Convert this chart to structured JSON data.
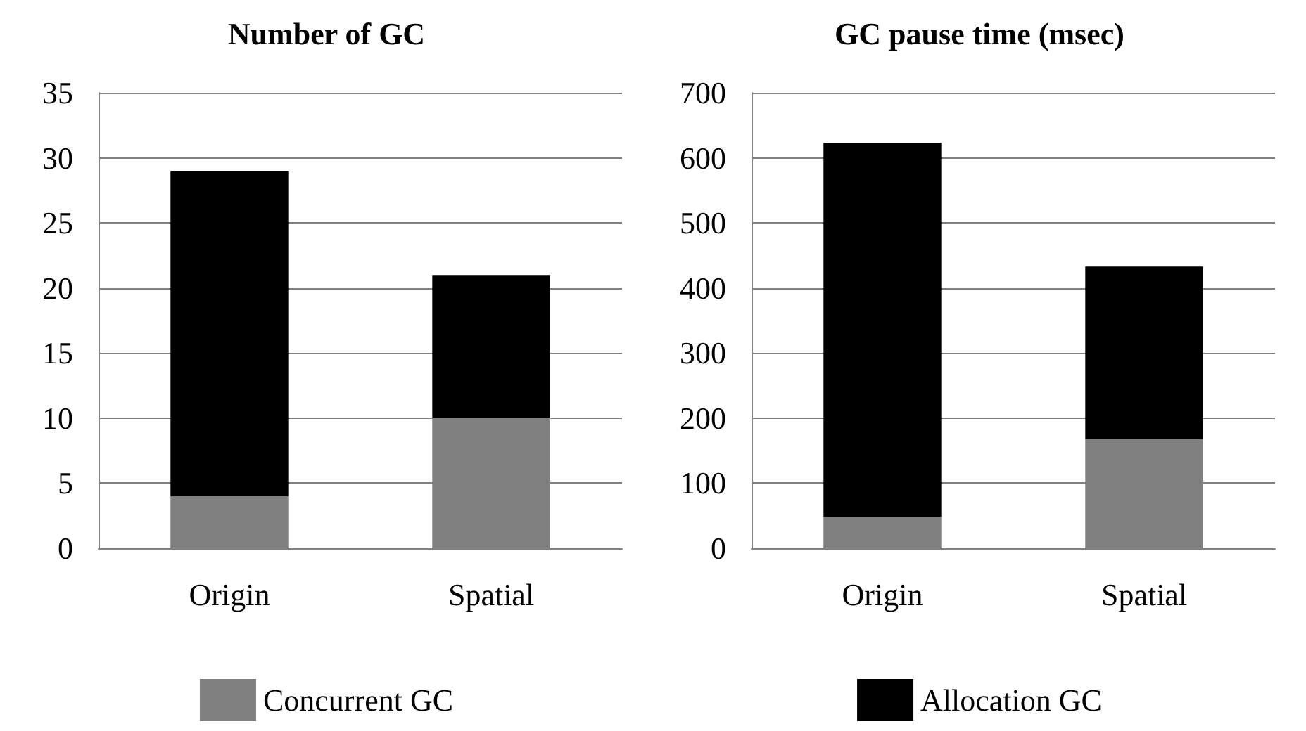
{
  "chart_data": [
    {
      "type": "bar",
      "title": "Number of GC",
      "categories": [
        "Origin",
        "Spatial"
      ],
      "stacked": true,
      "series": [
        {
          "name": "Concurrent GC",
          "color": "#808080",
          "values": [
            4,
            10
          ]
        },
        {
          "color": "#000000",
          "values": [
            25,
            11
          ]
        }
      ],
      "ylim": [
        0,
        35
      ],
      "yticks": [
        0,
        5,
        10,
        15,
        20,
        25,
        30,
        35
      ],
      "grid": "y",
      "legend": "bottom"
    },
    {
      "type": "bar",
      "title": "GC pause time (msec)",
      "categories": [
        "Origin",
        "Spatial"
      ],
      "stacked": true,
      "series": [
        {
          "color": "#808080",
          "values": [
            48,
            168
          ]
        },
        {
          "name": "Allocation GC",
          "color": "#000000",
          "values": [
            575,
            265
          ]
        }
      ],
      "ylim": [
        0,
        700
      ],
      "yticks": [
        0,
        100,
        200,
        300,
        400,
        500,
        600,
        700
      ],
      "grid": "y",
      "legend": "bottom"
    }
  ]
}
